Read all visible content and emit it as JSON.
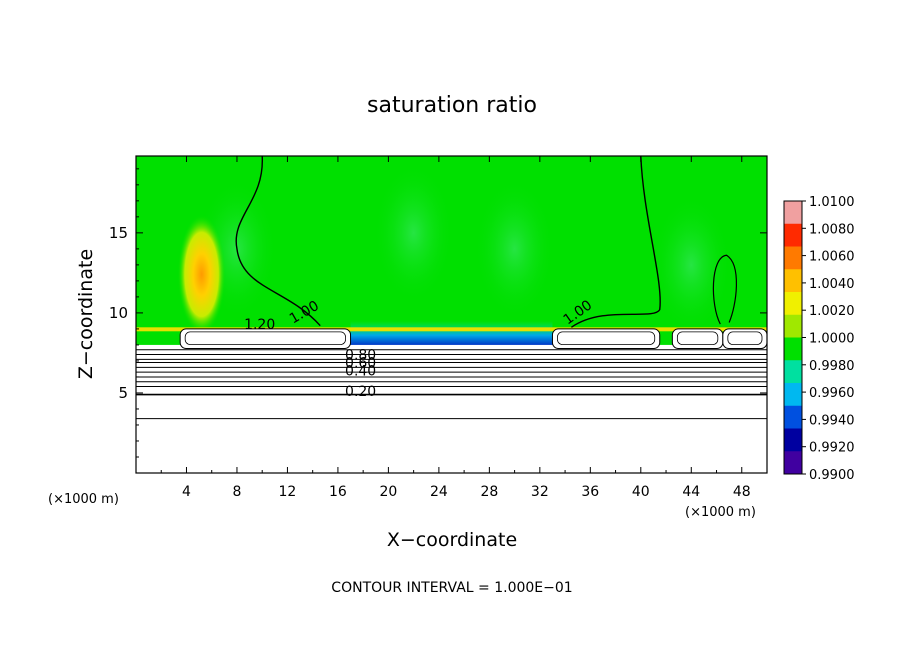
{
  "chart_data": {
    "type": "heatmap",
    "title": "saturation ratio",
    "xlabel": "X−coordinate",
    "ylabel": "Z−coordinate",
    "x_unit_label_left": "(×1000 m)",
    "x_unit_label_right": "(×1000 m)",
    "footer": "CONTOUR INTERVAL = 1.000E−01",
    "xlim": [
      0,
      50
    ],
    "ylim": [
      0,
      19.8
    ],
    "x_ticks": [
      4,
      8,
      12,
      16,
      20,
      24,
      28,
      32,
      36,
      40,
      44,
      48
    ],
    "y_ticks": [
      5,
      10,
      15
    ],
    "colorbar": {
      "min": 0.99,
      "max": 1.01,
      "labels": [
        "1.0100",
        "1.0080",
        "1.0060",
        "1.0040",
        "1.0020",
        "1.0000",
        "0.9980",
        "0.9960",
        "0.9940",
        "0.9920",
        "0.9900"
      ],
      "colors": [
        "#f0a0a0",
        "#ff2a00",
        "#ff7a00",
        "#ffc000",
        "#f0f000",
        "#a0e800",
        "#00e000",
        "#00e0a0",
        "#00b8f0",
        "#0050e0",
        "#0000a0",
        "#4000a0"
      ]
    },
    "contour_labels": [
      {
        "text": "1.20",
        "x": 9.8,
        "z": 9.0
      },
      {
        "text": "1.00",
        "x": 13.5,
        "z": 9.8
      },
      {
        "text": "1.00",
        "x": 35.2,
        "z": 9.8
      },
      {
        "text": "0.80",
        "x": 17.8,
        "z": 7.1
      },
      {
        "text": "0.60",
        "x": 17.8,
        "z": 6.6
      },
      {
        "text": "0.40",
        "x": 17.8,
        "z": 6.1
      },
      {
        "text": "0.20",
        "x": 17.8,
        "z": 4.8
      }
    ],
    "cloud_regions": [
      {
        "x0": 3.5,
        "x1": 17.0,
        "top": 9.0,
        "bottom": 7.9
      },
      {
        "x0": 33.0,
        "x1": 41.5,
        "top": 9.0,
        "bottom": 7.9
      },
      {
        "x0": 42.5,
        "x1": 46.5,
        "top": 9.0,
        "bottom": 7.9
      },
      {
        "x0": 46.5,
        "x1": 50.0,
        "top": 9.0,
        "bottom": 7.9
      }
    ],
    "supersat_blobs": [
      {
        "x": 5.2,
        "z": 12.4,
        "value": 1.005
      }
    ],
    "subsat_zone": {
      "x0": 17,
      "x1": 33,
      "z": 8.0,
      "value": 0.9925
    }
  }
}
